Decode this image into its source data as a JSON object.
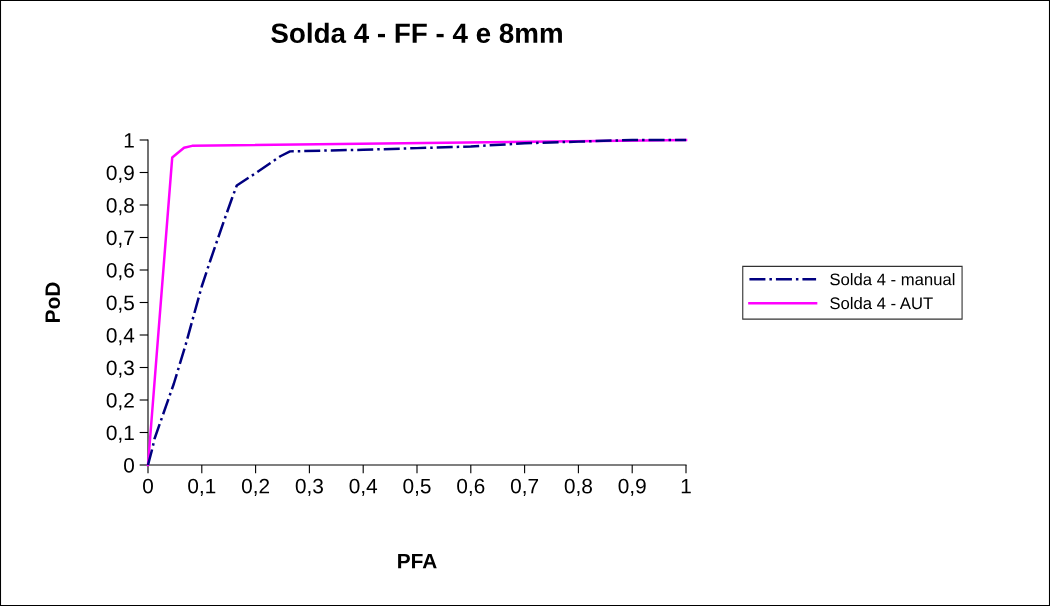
{
  "chart_data": {
    "type": "line",
    "title": "Solda 4 - FF - 4 e 8mm",
    "xlabel": "PFA",
    "ylabel": "PoD",
    "xlim": [
      0,
      1
    ],
    "ylim": [
      0,
      1
    ],
    "xticks": [
      0,
      {
        "value": 0.1,
        "label": "0,1"
      },
      {
        "value": 0.2,
        "label": "0,2"
      },
      {
        "value": 0.3,
        "label": "0,3"
      },
      {
        "value": 0.4,
        "label": "0,4"
      },
      {
        "value": 0.5,
        "label": "0,5"
      },
      {
        "value": 0.6,
        "label": "0,6"
      },
      {
        "value": 0.7,
        "label": "0,7"
      },
      {
        "value": 0.8,
        "label": "0,8"
      },
      {
        "value": 0.9,
        "label": "0,9"
      },
      1
    ],
    "yticks": [
      0,
      {
        "value": 0.1,
        "label": "0,1"
      },
      {
        "value": 0.2,
        "label": "0,2"
      },
      {
        "value": 0.3,
        "label": "0,3"
      },
      {
        "value": 0.4,
        "label": "0,4"
      },
      {
        "value": 0.5,
        "label": "0,5"
      },
      {
        "value": 0.6,
        "label": "0,6"
      },
      {
        "value": 0.7,
        "label": "0,7"
      },
      {
        "value": 0.8,
        "label": "0,8"
      },
      {
        "value": 0.9,
        "label": "0,9"
      },
      1
    ],
    "grid": false,
    "legend": "right",
    "marker": "none",
    "series": [
      {
        "name": "Solda 4 - manual",
        "color": "#000080",
        "line_style": "dashdot",
        "x": [
          0,
          0.008,
          0.012,
          0.048,
          0.07,
          0.1,
          0.116,
          0.141,
          0.156,
          0.165,
          0.202,
          0.246,
          0.264,
          0.4,
          0.5,
          0.6,
          0.7,
          0.8,
          0.9,
          1
        ],
        "values": [
          0,
          0.05,
          0.08,
          0.25,
          0.37,
          0.55,
          0.63,
          0.75,
          0.82,
          0.86,
          0.9,
          0.95,
          0.965,
          0.97,
          0.975,
          0.98,
          0.99,
          0.995,
          1,
          1
        ]
      },
      {
        "name": "Solda 4 - AUT",
        "color": "#ff00ff",
        "line_style": "solid",
        "x": [
          0,
          0.045,
          0.067,
          0.082,
          1
        ],
        "values": [
          0,
          0.946,
          0.976,
          0.982,
          1
        ]
      }
    ]
  }
}
